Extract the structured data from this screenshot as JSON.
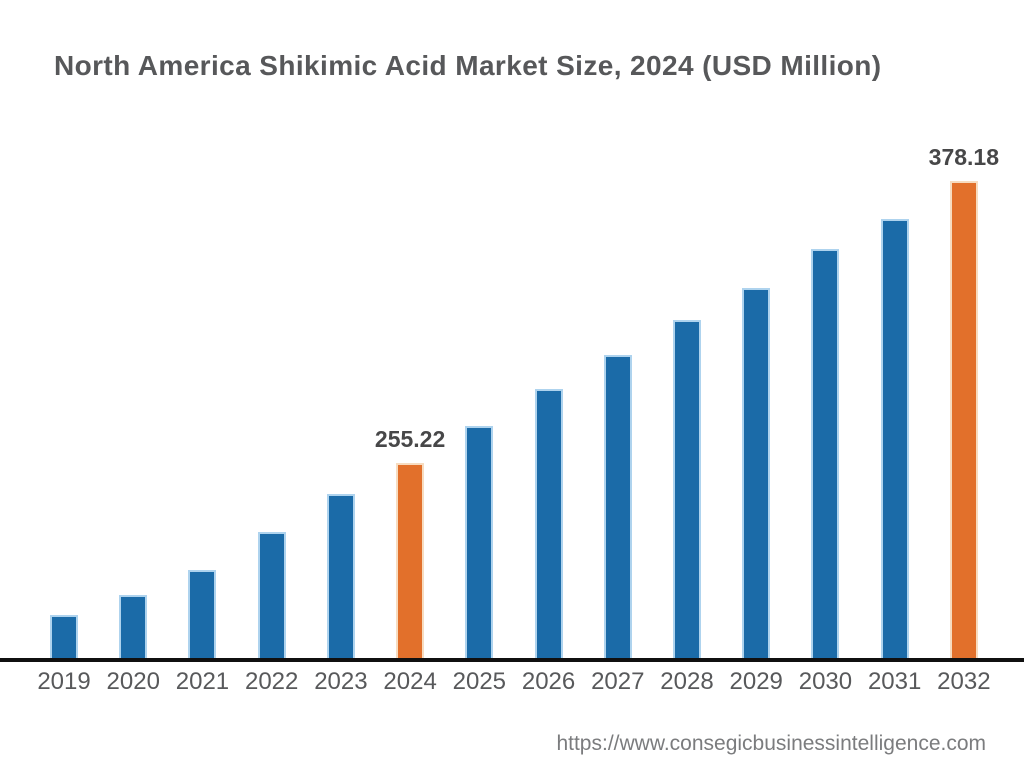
{
  "header": {
    "title": "North America Shikimic Acid Market Size, 2024 (USD Million)"
  },
  "footer": {
    "url": "https://www.consegicbusinessintelligence.com"
  },
  "chart_data": {
    "type": "bar",
    "title": "North America Shikimic Acid Market Size, 2024 (USD Million)",
    "categories": [
      "2019",
      "2020",
      "2021",
      "2022",
      "2023",
      "2024",
      "2025",
      "2026",
      "2027",
      "2028",
      "2029",
      "2030",
      "2031",
      "2032"
    ],
    "values": [
      188.6,
      197.7,
      208.6,
      225.2,
      241.4,
      255.22,
      271.3,
      287.4,
      302.2,
      317.5,
      331.4,
      348.4,
      361.5,
      378.18
    ],
    "value_labels": {
      "2024": "255.22",
      "2032": "378.18"
    },
    "highlighted_categories": [
      "2024",
      "2032"
    ],
    "colors": {
      "bar": "#1b6ba8",
      "bar_edge": "#aed3ee",
      "highlight": "#e2702b",
      "highlight_edge": "#f7dcc0",
      "axis_line": "#101010",
      "title_text": "#57585a",
      "tick_text": "#58595b",
      "value_text": "#474748"
    },
    "xlabel": "",
    "ylabel": "",
    "ylim": [
      170,
      400
    ],
    "grid": false,
    "legend": false,
    "note": "y-axis not drawn; only 2024 and 2032 bars carry data labels; values for other years estimated from bar heights"
  }
}
